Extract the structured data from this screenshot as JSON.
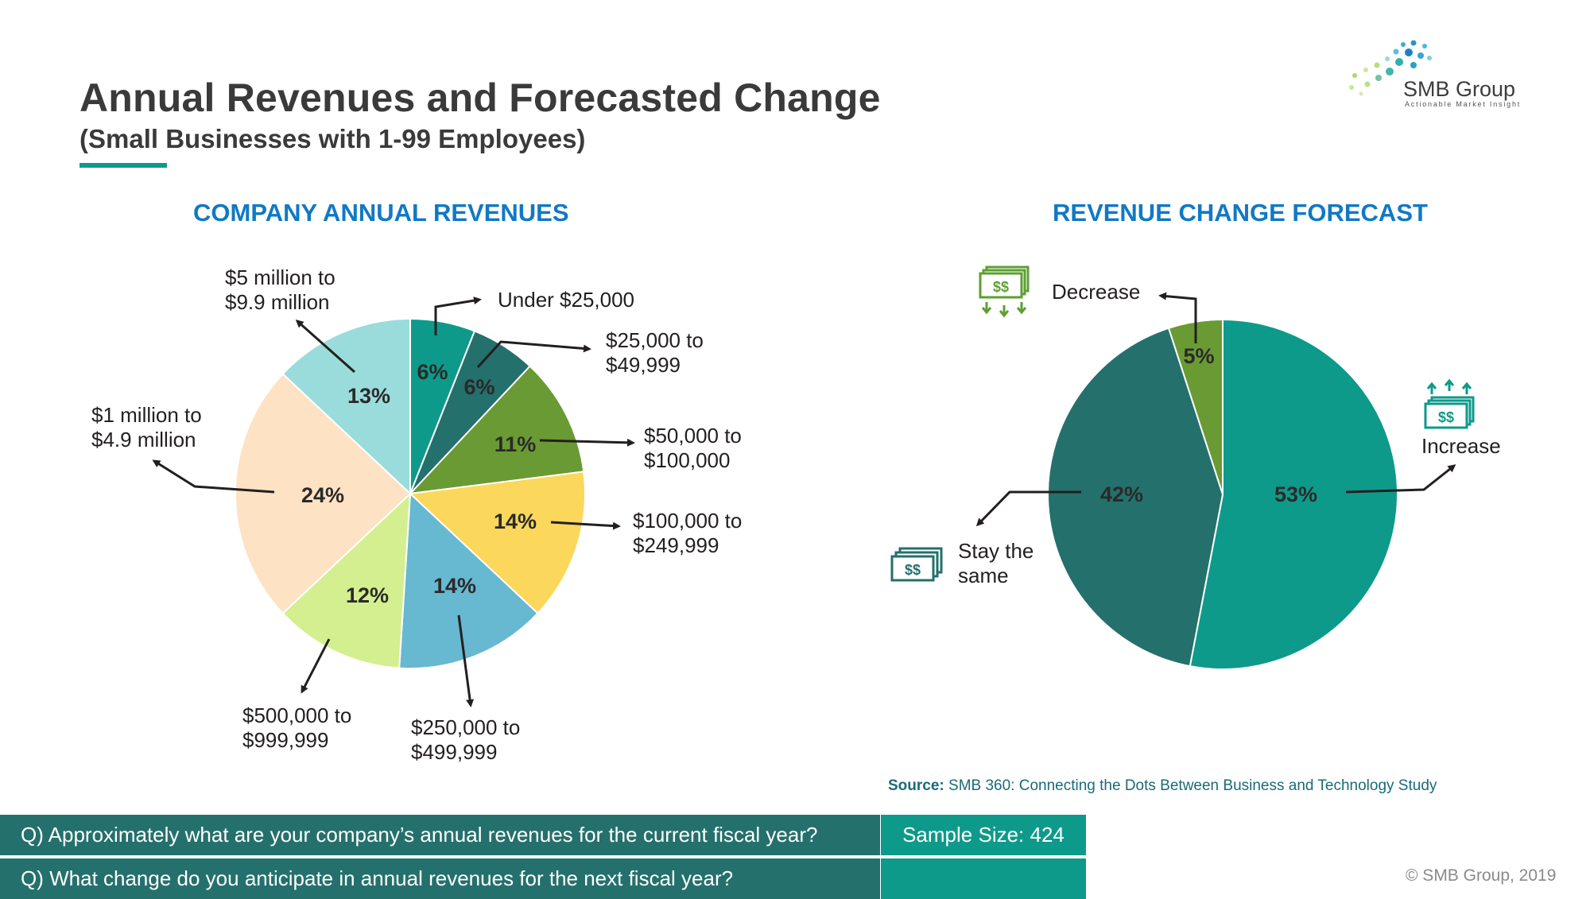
{
  "header": {
    "title": "Annual Revenues and Forecasted Change",
    "subtitle": "(Small Businesses with 1-99 Employees)"
  },
  "logo": {
    "name": "SMB Group",
    "tagline": "Actionable Market Insight"
  },
  "source": {
    "label": "Source:",
    "text": "SMB 360: Connecting the Dots Between Business and Technology Study"
  },
  "questions": {
    "q1": "Q) Approximately what are your company’s annual revenues for the current fiscal year?",
    "q2": "Q) What change do you anticipate in annual revenues for the next fiscal year?",
    "sample_size": "Sample Size: 424"
  },
  "copyright": "© SMB Group, 2019",
  "colors": {
    "accent_teal": "#0e9a8a",
    "dark_teal": "#24706c",
    "title_blue": "#1079c5",
    "icon_green": "#5e9f33"
  },
  "chart_data": [
    {
      "type": "pie",
      "title": "COMPANY ANNUAL REVENUES",
      "categories": [
        "Under $25,000",
        "$25,000 to $49,999",
        "$50,000 to $100,000",
        "$100,000 to $249,999",
        "$250,000 to $499,999",
        "$500,000 to $999,999",
        "$1 million to $4.9 million",
        "$5 million to $9.9 million"
      ],
      "values": [
        6,
        6,
        11,
        14,
        14,
        12,
        24,
        13
      ],
      "labels": [
        "6%",
        "6%",
        "11%",
        "14%",
        "14%",
        "12%",
        "24%",
        "13%"
      ],
      "colors": [
        "#0e9a8a",
        "#24706c",
        "#6a9a33",
        "#fbd75b",
        "#67b8d1",
        "#d4ef8f",
        "#fde2c3",
        "#99dcdb"
      ],
      "start": "12 o'clock",
      "direction": "clockwise"
    },
    {
      "type": "pie",
      "title": "REVENUE CHANGE FORECAST",
      "categories": [
        "Increase",
        "Stay the same",
        "Decrease"
      ],
      "values": [
        53,
        42,
        5
      ],
      "labels": [
        "53%",
        "42%",
        "5%"
      ],
      "colors": [
        "#0e9a8a",
        "#24706c",
        "#6a9a33"
      ],
      "start": "12 o'clock",
      "direction": "clockwise"
    }
  ]
}
